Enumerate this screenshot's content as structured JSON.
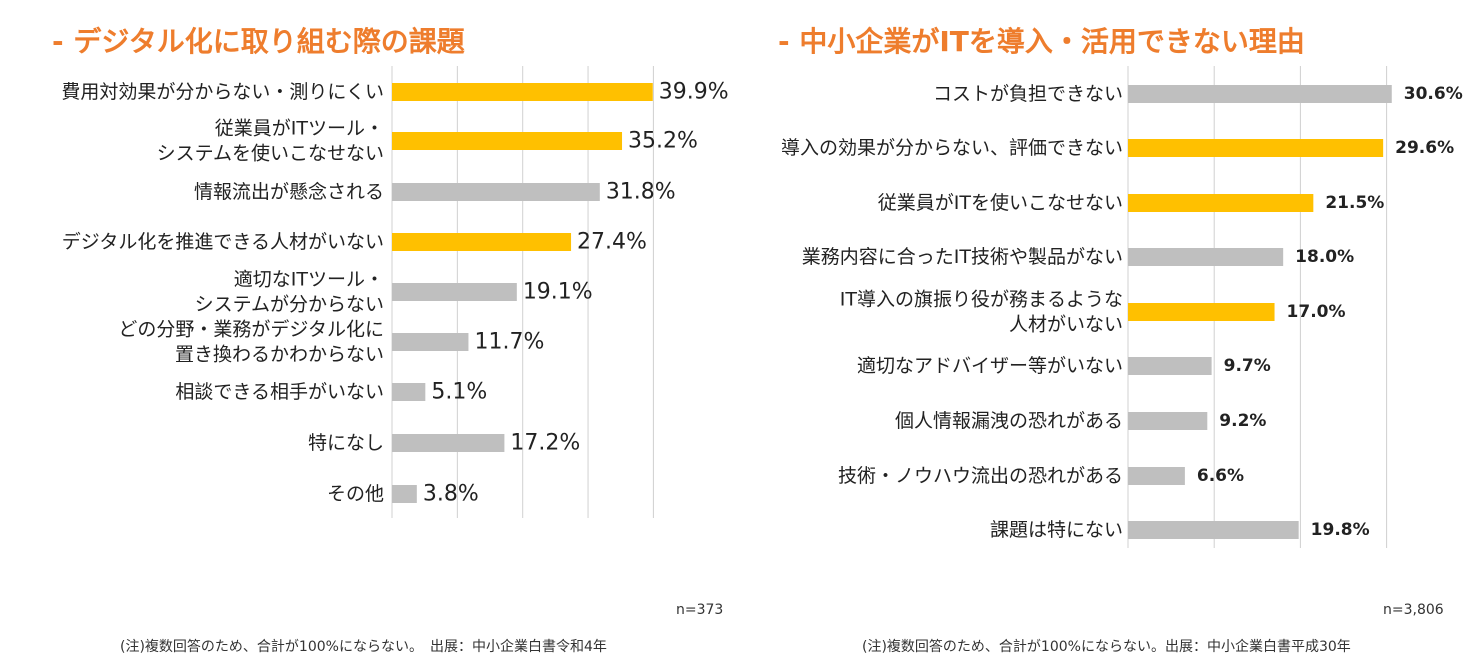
{
  "chart_data": [
    {
      "type": "bar",
      "orientation": "horizontal",
      "title": "- デジタル化に取り組む際の課題",
      "categories": [
        [
          "費用対効果が分からない・測りにくい"
        ],
        [
          "従業員がITツール・",
          "システムを使いこなせない"
        ],
        [
          "情報流出が懸念される"
        ],
        [
          "デジタル化を推進できる人材がいない"
        ],
        [
          "適切なITツール・",
          "システムが分からない"
        ],
        [
          "どの分野・業務がデジタル化に",
          "置き換わるかわからない"
        ],
        [
          "相談できる相手がいない"
        ],
        [
          "特になし"
        ],
        [
          "その他"
        ]
      ],
      "values": [
        39.9,
        35.2,
        31.8,
        27.4,
        19.1,
        11.7,
        5.1,
        17.2,
        3.8
      ],
      "value_labels": [
        "39.9%",
        "35.2%",
        "31.8%",
        "27.4%",
        "19.1%",
        "11.7%",
        "5.1%",
        "17.2%",
        "3.8%"
      ],
      "highlighted": [
        true,
        true,
        false,
        true,
        false,
        false,
        false,
        false,
        false
      ],
      "xlim": [
        0,
        50
      ],
      "gridlines": [
        0,
        10,
        20,
        30,
        40
      ],
      "grid": true,
      "note_n": "n=373",
      "note_source": "(注)複数回答のため、合計が100%にならない。　出展：中小企業白書令和4年"
    },
    {
      "type": "bar",
      "orientation": "horizontal",
      "title": "- 中小企業がITを導入・活用できない理由",
      "categories": [
        [
          "コストが負担できない"
        ],
        [
          "導入の効果が分からない、評価できない"
        ],
        [
          "従業員がITを使いこなせない"
        ],
        [
          "業務内容に合ったIT技術や製品がない"
        ],
        [
          "IT導入の旗振り役が務まるような",
          "人材がいない"
        ],
        [
          "適切なアドバイザー等がいない"
        ],
        [
          "個人情報漏洩の恐れがある"
        ],
        [
          "技術・ノウハウ流出の恐れがある"
        ],
        [
          "課題は特にない"
        ]
      ],
      "values": [
        30.6,
        29.6,
        21.5,
        18.0,
        17.0,
        9.7,
        9.2,
        6.6,
        19.8
      ],
      "value_labels": [
        "30.6%",
        "29.6%",
        "21.5%",
        "18.0%",
        "17.0%",
        "9.7%",
        "9.2%",
        "6.6%",
        "19.8%"
      ],
      "highlighted": [
        false,
        true,
        true,
        false,
        true,
        false,
        false,
        false,
        false
      ],
      "xlim": [
        0,
        35
      ],
      "gridlines": [
        0,
        10,
        20,
        30
      ],
      "grid": true,
      "note_n": "n=3,806",
      "note_source": "(注)複数回答のため、合計が100%にならない。出展：中小企業白書平成30年"
    }
  ],
  "colors": {
    "highlight": "#ffc000",
    "normal": "#bfbfbf",
    "title": "#ee7d2d",
    "grid": "#d0d0d0"
  }
}
